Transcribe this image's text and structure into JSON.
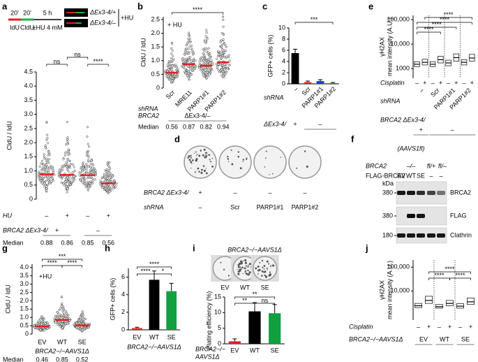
{
  "chart_data": [
    {
      "type": "dotplot",
      "panel": "a",
      "schematic": {
        "labels": [
          "20'",
          "20'",
          "5 h"
        ],
        "pulses": [
          "IdU",
          "CldU"
        ],
        "treatment": "±HU 4 mM",
        "genotypes": [
          "ΔEx3-4/+",
          "ΔEx3-4/–"
        ],
        "condition": "+HU"
      },
      "y_label": "CldU / IdU",
      "ylim": [
        0,
        4.5
      ],
      "yticks": [
        0,
        0.5,
        {
          "value": 1,
          "label": "1.0"
        },
        1.5,
        {
          "value": 2,
          "label": "2.0"
        },
        2.5,
        {
          "value": 3,
          "label": "3.0"
        },
        3.5,
        {
          "value": 4,
          "label": "4.0"
        },
        4.5
      ],
      "rows": [
        {
          "name": "HU",
          "labels": [
            "–",
            "+",
            "–",
            "+"
          ]
        },
        {
          "name": "BRCA2 ΔEx3-4/",
          "labels": [
            "+",
            "–"
          ]
        }
      ],
      "median_label": "Median",
      "values": [
        0.88,
        0.86,
        0.85,
        0.56
      ],
      "significance": [
        "ns",
        "ns",
        "****"
      ]
    },
    {
      "type": "dotplot",
      "panel": "b",
      "note": "+ HU",
      "y_label": "CldU / IdU",
      "ylim": [
        0,
        2.6
      ],
      "yticks": [
        0,
        0.5,
        {
          "value": 1,
          "label": "1.0"
        },
        1.5,
        {
          "value": 2,
          "label": "2.0"
        },
        2.5
      ],
      "rows": [
        {
          "name": "shRNA",
          "labels": [
            "Scr",
            "MRE11",
            "PARP1#1",
            "PARP1#2"
          ]
        },
        {
          "name": "BRCA2",
          "labels": [
            "ΔEx3-4/–"
          ]
        }
      ],
      "median_label": "Median",
      "values": [
        0.56,
        0.87,
        0.82,
        0.94
      ],
      "significance": [
        "****"
      ]
    },
    {
      "type": "bar",
      "panel": "c",
      "y_label": "GFP+ cells (%)",
      "ylim": [
        0,
        10
      ],
      "yticks": [
        0,
        2,
        4,
        6,
        8,
        10
      ],
      "values": [
        5.5,
        0.3,
        0.5,
        0.15
      ],
      "errors": [
        0.7,
        0.2,
        0.25,
        0.1
      ],
      "colors": [
        "#000000",
        "#e02020",
        "#1f3fd0",
        "#10a040"
      ],
      "rows": [
        {
          "name": "shRNA",
          "labels": [
            "–",
            "Scr",
            "PARP1#1",
            "PARP1#2"
          ]
        },
        {
          "name": "ΔEx3-4/",
          "labels": [
            "+",
            "–"
          ]
        }
      ],
      "significance": [
        "***"
      ]
    },
    {
      "type": "plates",
      "panel": "d",
      "rows": [
        {
          "name": "BRCA2 ΔEx3-4/",
          "labels": [
            "+",
            "–",
            "–",
            "–"
          ]
        },
        {
          "name": "shRNA",
          "labels": [
            "–",
            "Scr",
            "PARP1#1",
            "PARP1#2"
          ]
        }
      ]
    },
    {
      "type": "box",
      "panel": "e",
      "y_label": [
        "γH2AX",
        "mean intensity (A.U.)"
      ],
      "log_y": true,
      "ylim": [
        400,
        150000
      ],
      "yticks": [
        1000,
        {
          "value": 10000,
          "label": "10,000"
        },
        {
          "value": 100000,
          "label": "100,000"
        }
      ],
      "medians": [
        1500,
        1800,
        1500,
        2300,
        1700,
        2800,
        1800,
        2700
      ],
      "q1": [
        1200,
        1400,
        1200,
        1700,
        1300,
        2000,
        1400,
        2000
      ],
      "q3": [
        1900,
        2400,
        1900,
        3200,
        2200,
        4000,
        2300,
        3800
      ],
      "rows": [
        {
          "name": "Cisplatin",
          "labels": [
            "–",
            "+",
            "–",
            "+",
            "–",
            "+",
            "–",
            "+"
          ]
        },
        {
          "name": "shRNA",
          "labels": [
            "–",
            "Scr",
            "PARP1#1",
            "PARP1#2"
          ]
        },
        {
          "name": "BRCA2 ΔEx3-4/",
          "labels": [
            "+",
            "–"
          ]
        }
      ],
      "significance": [
        "****",
        "****",
        "****",
        "****"
      ]
    },
    {
      "type": "blot",
      "panel": "f",
      "header": {
        "gene": "BRCA2",
        "line": "(AAVS1fl)",
        "genotypes": [
          "–/–",
          "fl/+",
          "fl/–"
        ],
        "construct": "FLAG-BRCA2",
        "lanes": [
          "EV",
          "WT",
          "SE",
          "–",
          "–"
        ]
      },
      "marker_unit": "kDa",
      "bands": [
        {
          "size": 380,
          "label": "BRCA2"
        },
        {
          "size": 380,
          "label": "FLAG"
        },
        {
          "size": 180,
          "label": "Clathrin"
        }
      ]
    },
    {
      "type": "dotplot",
      "panel": "g",
      "note": "+HU",
      "y_label": "CldU / IdU",
      "ylim": [
        0,
        4.2
      ],
      "yticks": [
        0,
        0.5,
        {
          "value": 1,
          "label": "1.0"
        },
        1.5,
        {
          "value": 2,
          "label": "2.0"
        },
        2.5,
        {
          "value": 3,
          "label": "3.0"
        },
        3.5,
        {
          "value": 4,
          "label": "4.0"
        }
      ],
      "rows": [
        {
          "labels": [
            "EV",
            "WT",
            "SE"
          ]
        }
      ],
      "x_label": "BRCA2−/−AAVS1Δ",
      "median_label": "Median",
      "values": [
        0.46,
        0.85,
        0.52
      ],
      "significance": [
        "****",
        "****",
        "***"
      ]
    },
    {
      "type": "bar",
      "panel": "h",
      "y_label": "GFP+ cells (%)",
      "ylim": [
        0,
        7
      ],
      "yticks": [
        0,
        2,
        4,
        6
      ],
      "values": [
        0.2,
        5.7,
        4.4
      ],
      "errors": [
        0.1,
        1.0,
        0.9
      ],
      "colors": [
        "#e02020",
        "#000000",
        "#10a040"
      ],
      "rows": [
        {
          "labels": [
            "EV",
            "WT",
            "SE"
          ]
        }
      ],
      "x_label": "BRCA2−/−AAVS1Δ",
      "significance": [
        "****",
        "****",
        "*"
      ]
    },
    {
      "type": "bar",
      "panel": "i",
      "plates_title": "BRCA2−/−AAVS1Δ",
      "y_label": "Plating efficiency (%)",
      "ylim": [
        0,
        15
      ],
      "yticks": [
        0,
        5,
        10,
        15
      ],
      "values": [
        0.8,
        10.4,
        9.8
      ],
      "errors": [
        0.8,
        2.8,
        2.8
      ],
      "colors": [
        "#e02020",
        "#000000",
        "#10a040"
      ],
      "rows": [
        {
          "labels": [
            "EV",
            "WT",
            "SE"
          ]
        }
      ],
      "x_label": [
        "BRCA2−/−",
        "AAVS1Δ"
      ],
      "significance": [
        "**",
        "**",
        "ns"
      ]
    },
    {
      "type": "box",
      "panel": "j",
      "y_label": [
        "γH2AX",
        "mean intensity (A.U.)"
      ],
      "log_y": true,
      "ylim": [
        600,
        200000
      ],
      "yticks": [
        {
          "value": 10000,
          "label": "10,000"
        },
        {
          "value": 100000,
          "label": "100,000"
        }
      ],
      "medians": [
        2400,
        4000,
        2200,
        3000,
        2300,
        3500
      ],
      "q1": [
        2000,
        3000,
        1900,
        2400,
        1900,
        2700
      ],
      "q3": [
        3000,
        6000,
        2700,
        4000,
        2900,
        5000
      ],
      "rows": [
        {
          "name": "Cisplatin",
          "labels": [
            "–",
            "+",
            "–",
            "+",
            "–",
            "+"
          ]
        },
        {
          "name": "BRCA2−/−AAVS1Δ",
          "labels": [
            "EV",
            "WT",
            "SE"
          ]
        }
      ],
      "significance": [
        "****",
        "****",
        "****"
      ]
    }
  ]
}
